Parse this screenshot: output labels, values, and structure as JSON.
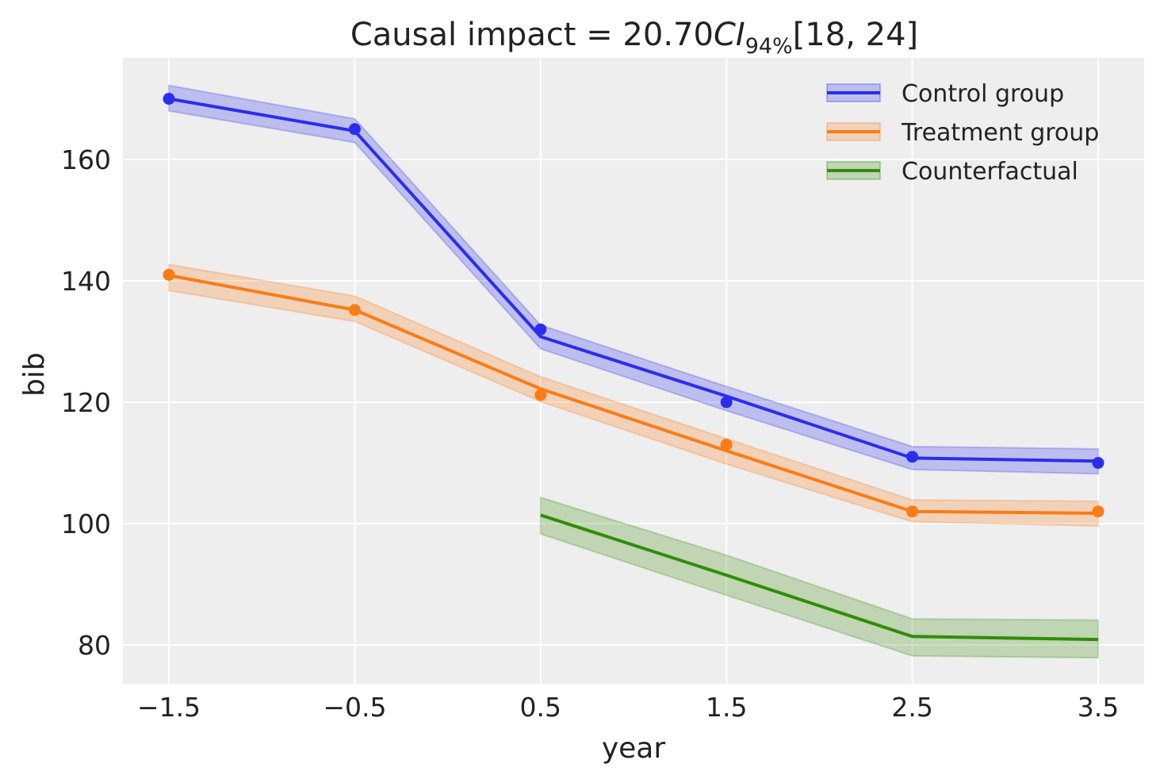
{
  "chart_data": {
    "type": "line",
    "title": {
      "prefix": "Causal impact = 20.70",
      "italic": "CI",
      "subscript": "94%",
      "suffix": "[18, 24]"
    },
    "xlabel": "year",
    "ylabel": "bib",
    "xlim": [
      -1.75,
      3.75
    ],
    "ylim": [
      73.5,
      177
    ],
    "xticks": [
      -1.5,
      -0.5,
      0.5,
      1.5,
      2.5,
      3.5
    ],
    "xtick_labels": [
      "−1.5",
      "−0.5",
      "0.5",
      "1.5",
      "2.5",
      "3.5"
    ],
    "yticks": [
      80,
      100,
      120,
      140,
      160
    ],
    "ytick_labels": [
      "80",
      "100",
      "120",
      "140",
      "160"
    ],
    "grid": true,
    "background": "#eeeeee",
    "legend_position": "top-right",
    "series": [
      {
        "name": "Control group",
        "color": "#2a2eec",
        "x": [
          -1.5,
          -0.5,
          0.5,
          1.5,
          2.5,
          3.5
        ],
        "mean": [
          170.0,
          164.7,
          130.8,
          121.0,
          110.8,
          110.3
        ],
        "lower": [
          168.0,
          162.8,
          128.8,
          118.6,
          108.9,
          108.2
        ],
        "upper": [
          172.2,
          166.7,
          132.7,
          122.6,
          112.7,
          112.3
        ],
        "observed": [
          170,
          165,
          132,
          120,
          111,
          110
        ]
      },
      {
        "name": "Treatment group",
        "color": "#fa7c17",
        "x": [
          -1.5,
          -0.5,
          0.5,
          1.5,
          2.5,
          3.5
        ],
        "mean": [
          140.9,
          135.2,
          122.2,
          112.0,
          102.0,
          101.7
        ],
        "lower": [
          138.4,
          133.3,
          120.1,
          109.8,
          100.3,
          99.6
        ],
        "upper": [
          142.7,
          137.5,
          124.2,
          114.0,
          103.9,
          103.7
        ],
        "observed": [
          141,
          135.2,
          121.2,
          113,
          102,
          102
        ]
      },
      {
        "name": "Counterfactual",
        "color": "#328c06",
        "x": [
          0.5,
          1.5,
          2.5,
          3.5
        ],
        "mean": [
          101.4,
          91.5,
          81.4,
          80.9
        ],
        "lower": [
          98.3,
          88.2,
          78.2,
          77.9
        ],
        "upper": [
          104.3,
          94.8,
          84.3,
          84.1
        ]
      }
    ]
  }
}
